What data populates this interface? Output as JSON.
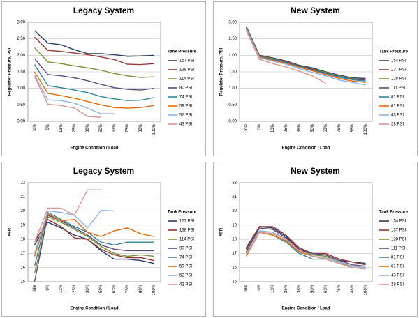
{
  "chart_data": [
    {
      "type": "line",
      "title": "Legacy System",
      "xlabel": "Engine Condition / Load",
      "ylabel": "Regulator Pressure, PSI",
      "legend_title": "Tank Pressure",
      "legend": "right",
      "grid": true,
      "categories": [
        "Idle",
        "0%",
        "13%",
        "25%",
        "38%",
        "50%",
        "63%",
        "75%",
        "88%",
        "100%"
      ],
      "ylim": [
        0,
        3
      ],
      "yticks": [
        {
          "value": 0,
          "label": "0.00"
        },
        {
          "value": 0.5,
          "label": "0.50"
        },
        {
          "value": 1,
          "label": "1.00"
        },
        {
          "value": 1.5,
          "label": "1.50"
        },
        {
          "value": 2,
          "label": "2.00"
        },
        {
          "value": 2.5,
          "label": "2.50"
        },
        {
          "value": 3,
          "label": "3.00"
        }
      ],
      "series": [
        {
          "name": "157 PSI",
          "color": "#254061",
          "values": [
            2.75,
            2.37,
            2.32,
            2.17,
            2.05,
            2.05,
            2.02,
            1.97,
            1.98,
            2.0
          ]
        },
        {
          "name": "138 PSI",
          "color": "#953735",
          "values": [
            2.55,
            2.15,
            2.12,
            2.07,
            2.02,
            1.95,
            1.87,
            1.73,
            1.72,
            1.75
          ]
        },
        {
          "name": "114 PSI",
          "color": "#77933C",
          "values": [
            2.23,
            1.8,
            1.75,
            1.68,
            1.62,
            1.55,
            1.45,
            1.38,
            1.33,
            1.35
          ]
        },
        {
          "name": "90 PSI",
          "color": "#604A7B",
          "values": [
            1.9,
            1.42,
            1.38,
            1.32,
            1.23,
            1.12,
            1.02,
            0.97,
            0.95,
            1.0
          ]
        },
        {
          "name": "74 PSI",
          "color": "#31859C",
          "values": [
            1.72,
            1.08,
            1.02,
            0.95,
            0.87,
            0.75,
            0.68,
            0.63,
            0.64,
            0.72
          ]
        },
        {
          "name": "59 PSI",
          "color": "#E46C0A",
          "values": [
            1.5,
            0.85,
            0.78,
            0.7,
            0.6,
            0.5,
            0.42,
            0.4,
            0.42,
            0.48
          ]
        },
        {
          "name": "52 PSI",
          "color": "#8EB4E3",
          "values": [
            1.4,
            0.65,
            0.63,
            0.55,
            0.4,
            0.23,
            0.23,
            null,
            null,
            null
          ]
        },
        {
          "name": "43 PSI",
          "color": "#D99694",
          "values": [
            1.35,
            0.52,
            0.48,
            0.4,
            0.15,
            0.12,
            null,
            null,
            null,
            null
          ]
        }
      ]
    },
    {
      "type": "line",
      "title": "New System",
      "xlabel": "Engine Condition / Load",
      "ylabel": "Regulator Pressure, PSI",
      "legend_title": "Tank Pressure",
      "legend": "right",
      "grid": true,
      "categories": [
        "Idle",
        "0%",
        "13%",
        "25%",
        "38%",
        "50%",
        "63%",
        "75%",
        "88%",
        "100%"
      ],
      "ylim": [
        0,
        3
      ],
      "yticks": [
        {
          "value": 0,
          "label": "0.00"
        },
        {
          "value": 0.5,
          "label": "0.50"
        },
        {
          "value": 1,
          "label": "1.00"
        },
        {
          "value": 1.5,
          "label": "1.50"
        },
        {
          "value": 2,
          "label": "2.00"
        },
        {
          "value": 2.5,
          "label": "2.50"
        },
        {
          "value": 3,
          "label": "3.00"
        }
      ],
      "series": [
        {
          "name": "154 PSI",
          "color": "#254061",
          "values": [
            2.88,
            2.0,
            1.92,
            1.83,
            1.7,
            1.62,
            1.5,
            1.4,
            1.32,
            1.3
          ]
        },
        {
          "name": "137 PSI",
          "color": "#953735",
          "values": [
            2.87,
            2.0,
            1.9,
            1.82,
            1.68,
            1.6,
            1.48,
            1.38,
            1.3,
            1.28
          ]
        },
        {
          "name": "128 PSI",
          "color": "#77933C",
          "values": [
            2.86,
            1.98,
            1.9,
            1.8,
            1.68,
            1.58,
            1.48,
            1.38,
            1.3,
            1.27
          ]
        },
        {
          "name": "111 PSI",
          "color": "#604A7B",
          "values": [
            2.85,
            1.97,
            1.88,
            1.8,
            1.67,
            1.57,
            1.46,
            1.36,
            1.28,
            1.25
          ]
        },
        {
          "name": "81 PSI",
          "color": "#31859C",
          "values": [
            2.84,
            1.96,
            1.87,
            1.78,
            1.66,
            1.55,
            1.45,
            1.34,
            1.26,
            1.22
          ]
        },
        {
          "name": "61 PSI",
          "color": "#E46C0A",
          "values": [
            2.82,
            1.95,
            1.85,
            1.76,
            1.64,
            1.53,
            1.42,
            1.3,
            1.22,
            1.18
          ]
        },
        {
          "name": "43 PSI",
          "color": "#8EB4E3",
          "values": [
            2.8,
            1.93,
            1.82,
            1.73,
            1.6,
            1.48,
            1.38,
            1.25,
            1.18,
            1.1
          ]
        },
        {
          "name": "28 PSI",
          "color": "#D99694",
          "values": [
            2.75,
            1.88,
            1.75,
            1.65,
            1.52,
            1.38,
            1.15,
            null,
            null,
            null
          ]
        }
      ]
    },
    {
      "type": "line",
      "title": "Legacy System",
      "xlabel": "Engine Condition / Load",
      "ylabel": "AFR",
      "legend_title": "Tank Pressure",
      "legend": "right",
      "grid": true,
      "categories": [
        "Idle",
        "0%",
        "13%",
        "25%",
        "38%",
        "50%",
        "63%",
        "75%",
        "88%",
        "100%"
      ],
      "ylim": [
        15,
        22
      ],
      "yticks": [
        15,
        16,
        17,
        18,
        19,
        20,
        21,
        22
      ],
      "series": [
        {
          "name": "157 PSI",
          "color": "#254061",
          "values": [
            17.6,
            19.2,
            18.8,
            18.3,
            18.0,
            17.2,
            16.6,
            16.6,
            16.5,
            16.3
          ]
        },
        {
          "name": "138 PSI",
          "color": "#953735",
          "values": [
            17.8,
            19.4,
            18.9,
            18.1,
            18.0,
            17.3,
            16.9,
            16.7,
            16.7,
            16.5
          ]
        },
        {
          "name": "114 PSI",
          "color": "#77933C",
          "values": [
            15.6,
            19.6,
            19.2,
            18.7,
            18.2,
            17.5,
            17.0,
            16.8,
            16.9,
            16.8
          ]
        },
        {
          "name": "90 PSI",
          "color": "#604A7B",
          "values": [
            15.0,
            19.7,
            19.3,
            18.8,
            18.3,
            17.6,
            17.3,
            17.2,
            17.2,
            17.2
          ]
        },
        {
          "name": "74 PSI",
          "color": "#31859C",
          "values": [
            16.1,
            19.9,
            19.4,
            18.9,
            18.5,
            17.8,
            17.6,
            17.8,
            17.8,
            17.8
          ]
        },
        {
          "name": "59 PSI",
          "color": "#E46C0A",
          "values": [
            16.8,
            19.8,
            19.3,
            19.4,
            18.5,
            18.2,
            18.6,
            18.8,
            18.4,
            18.2
          ]
        },
        {
          "name": "52 PSI",
          "color": "#8EB4E3",
          "values": [
            17.0,
            20.0,
            19.9,
            19.7,
            18.8,
            20.05,
            20.0,
            null,
            null,
            null
          ]
        },
        {
          "name": "43 PSI",
          "color": "#D99694",
          "values": [
            17.8,
            20.2,
            20.2,
            19.7,
            21.5,
            21.5,
            null,
            null,
            null,
            null
          ]
        }
      ]
    },
    {
      "type": "line",
      "title": "New System",
      "xlabel": "Engine Condition / Load",
      "ylabel": "AFR",
      "legend_title": "Tank Pressure",
      "legend": "right",
      "grid": true,
      "categories": [
        "Idle",
        "0%",
        "13%",
        "25%",
        "38%",
        "50%",
        "63%",
        "75%",
        "88%",
        "100%"
      ],
      "ylim": [
        15,
        22
      ],
      "yticks": [
        15,
        16,
        17,
        18,
        19,
        20,
        21,
        22
      ],
      "series": [
        {
          "name": "154 PSI",
          "color": "#254061",
          "values": [
            17.4,
            18.9,
            18.8,
            18.2,
            17.3,
            16.9,
            16.9,
            16.5,
            16.4,
            16.3
          ]
        },
        {
          "name": "137 PSI",
          "color": "#953735",
          "values": [
            17.3,
            18.9,
            18.9,
            18.3,
            17.4,
            17.0,
            17.0,
            16.6,
            16.4,
            16.2
          ]
        },
        {
          "name": "128 PSI",
          "color": "#77933C",
          "values": [
            17.2,
            18.6,
            18.5,
            18.0,
            17.2,
            16.9,
            16.8,
            16.4,
            16.1,
            16.0
          ]
        },
        {
          "name": "111 PSI",
          "color": "#604A7B",
          "values": [
            17.1,
            18.8,
            18.7,
            18.1,
            17.3,
            17.0,
            16.9,
            16.5,
            16.2,
            16.1
          ]
        },
        {
          "name": "81 PSI",
          "color": "#31859C",
          "values": [
            17.0,
            18.5,
            18.3,
            17.8,
            17.0,
            16.6,
            16.6,
            16.3,
            16.0,
            15.9
          ]
        },
        {
          "name": "61 PSI",
          "color": "#E46C0A",
          "values": [
            16.8,
            18.5,
            18.3,
            17.9,
            17.1,
            16.8,
            16.7,
            16.4,
            16.0,
            15.9
          ]
        },
        {
          "name": "43 PSI",
          "color": "#8EB4E3",
          "values": [
            17.0,
            18.6,
            18.5,
            18.0,
            17.2,
            16.8,
            16.7,
            16.4,
            16.1,
            16.0
          ]
        },
        {
          "name": "28 PSI",
          "color": "#D99694",
          "values": [
            16.9,
            18.5,
            18.4,
            18.0,
            17.2,
            16.8,
            16.6,
            16.3,
            16.0,
            15.9
          ]
        }
      ]
    }
  ]
}
